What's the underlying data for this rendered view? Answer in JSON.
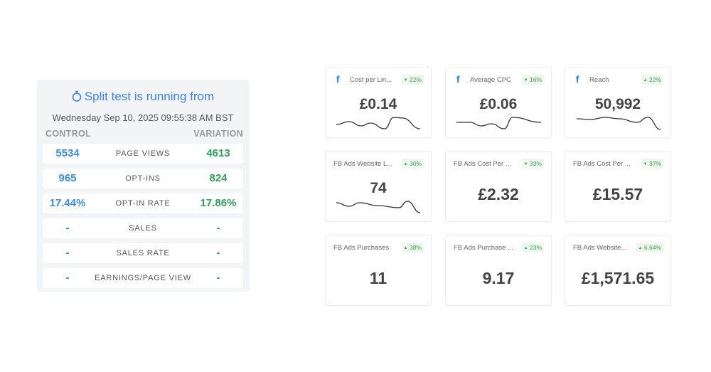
{
  "split_test": {
    "title": "Split test is running from",
    "date": "Wednesday Sep 10, 2025 09:55:38 AM BST",
    "control_header": "CONTROL",
    "variation_header": "VARIATION",
    "rows": [
      {
        "label": "PAGE VIEWS",
        "control": "5534",
        "variation": "4613"
      },
      {
        "label": "OPT-INS",
        "control": "965",
        "variation": "824"
      },
      {
        "label": "OPT-IN RATE",
        "control": "17.44%",
        "variation": "17.86%"
      },
      {
        "label": "SALES",
        "control": "-",
        "variation": "-"
      },
      {
        "label": "SALES RATE",
        "control": "-",
        "variation": "-"
      },
      {
        "label": "EARNINGS/PAGE VIEW",
        "control": "-",
        "variation": "-"
      }
    ]
  },
  "metrics": [
    {
      "name": "Cost per Lin...",
      "value": "£0.14",
      "change": "22%",
      "direction": "down",
      "source": "facebook",
      "sparkline": true
    },
    {
      "name": "Average CPC",
      "value": "£0.06",
      "change": "16%",
      "direction": "down",
      "source": "facebook",
      "sparkline": true
    },
    {
      "name": "Reach",
      "value": "50,992",
      "change": "22%",
      "direction": "up",
      "source": "facebook",
      "sparkline": true
    },
    {
      "name": "FB Ads Website L...",
      "value": "74",
      "change": "30%",
      "direction": "up",
      "sparkline": true
    },
    {
      "name": "FB Ads Cost Per ...",
      "value": "£2.32",
      "change": "33%",
      "direction": "down"
    },
    {
      "name": "FB Ads Cost Per ...",
      "value": "£15.57",
      "change": "37%",
      "direction": "down"
    },
    {
      "name": "FB Ads Purchases",
      "value": "11",
      "change": "38%",
      "direction": "up"
    },
    {
      "name": "FB Ads Purchase ...",
      "value": "9.17",
      "change": "23%",
      "direction": "up"
    },
    {
      "name": "FB Ads Website...",
      "value": "£1,571.65",
      "change": "6.64%",
      "direction": "up"
    }
  ],
  "icons": {
    "timer": "stopwatch-icon",
    "source": "facebook-icon",
    "up": "triangle-up-icon",
    "down": "triangle-down-icon"
  },
  "colors": {
    "accent": "#3b82f6",
    "control": "#3b8de0",
    "variation": "#2fa35a",
    "badge_text": "#3ca04a",
    "badge_bg": "#eef8ef",
    "facebook": "#1877f2"
  }
}
